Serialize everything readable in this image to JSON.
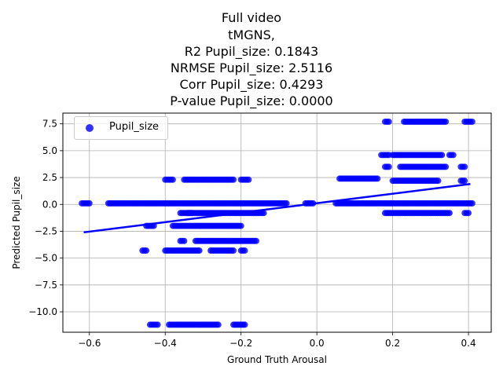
{
  "chart_data": {
    "type": "scatter",
    "title_lines": [
      "Full video",
      "tMGNS,",
      "R2 Pupil_size: 0.1843",
      "NRMSE Pupil_size: 2.5116",
      "Corr Pupil_size: 0.4293",
      "P-value Pupil_size: 0.0000"
    ],
    "xlabel": "Ground Truth Arousal",
    "ylabel": "Predicted Pupil_size",
    "xlim": [
      -0.67,
      0.46
    ],
    "ylim": [
      -11.9,
      8.5
    ],
    "xticks": [
      -0.6,
      -0.4,
      -0.2,
      0.0,
      0.2,
      0.4
    ],
    "xtick_labels": [
      "−0.6",
      "−0.4",
      "−0.2",
      "0.0",
      "0.2",
      "0.4"
    ],
    "yticks": [
      -10.0,
      -7.5,
      -5.0,
      -2.5,
      0.0,
      2.5,
      5.0,
      7.5
    ],
    "ytick_labels": [
      "−10.0",
      "−7.5",
      "−5.0",
      "−2.5",
      "0.0",
      "2.5",
      "5.0",
      "7.5"
    ],
    "grid": true,
    "legend": {
      "position": "top-left",
      "entries": [
        "Pupil_size"
      ]
    },
    "regression_line": {
      "x": [
        -0.615,
        0.405
      ],
      "y": [
        -2.6,
        1.9
      ]
    },
    "series": [
      {
        "name": "Pupil_size",
        "color": "#0000ff",
        "segments": [
          {
            "y": 0.1,
            "x_start": -0.62,
            "x_end": -0.6
          },
          {
            "y": 0.1,
            "x_start": -0.55,
            "x_end": -0.08
          },
          {
            "y": 0.1,
            "x_start": -0.03,
            "x_end": -0.01
          },
          {
            "y": 0.1,
            "x_start": 0.05,
            "x_end": 0.41
          },
          {
            "y": 2.3,
            "x_start": -0.4,
            "x_end": -0.38
          },
          {
            "y": 2.3,
            "x_start": -0.35,
            "x_end": -0.22
          },
          {
            "y": 2.3,
            "x_start": -0.2,
            "x_end": -0.18
          },
          {
            "y": 2.4,
            "x_start": 0.06,
            "x_end": 0.16
          },
          {
            "y": 2.2,
            "x_start": 0.2,
            "x_end": 0.32
          },
          {
            "y": 2.2,
            "x_start": 0.38,
            "x_end": 0.39
          },
          {
            "y": -0.8,
            "x_start": -0.34,
            "x_end": -0.33
          },
          {
            "y": -0.8,
            "x_start": -0.36,
            "x_end": -0.14
          },
          {
            "y": -0.8,
            "x_start": 0.18,
            "x_end": 0.35
          },
          {
            "y": -0.8,
            "x_start": 0.39,
            "x_end": 0.4
          },
          {
            "y": -2.0,
            "x_start": -0.45,
            "x_end": -0.43
          },
          {
            "y": -2.0,
            "x_start": -0.38,
            "x_end": -0.2
          },
          {
            "y": -3.4,
            "x_start": -0.36,
            "x_end": -0.35
          },
          {
            "y": -3.4,
            "x_start": -0.32,
            "x_end": -0.16
          },
          {
            "y": -4.3,
            "x_start": -0.46,
            "x_end": -0.45
          },
          {
            "y": -4.3,
            "x_start": -0.4,
            "x_end": -0.31
          },
          {
            "y": -4.3,
            "x_start": -0.28,
            "x_end": -0.22
          },
          {
            "y": -4.3,
            "x_start": -0.2,
            "x_end": -0.19
          },
          {
            "y": -11.2,
            "x_start": -0.44,
            "x_end": -0.42
          },
          {
            "y": -11.2,
            "x_start": -0.39,
            "x_end": -0.26
          },
          {
            "y": -11.2,
            "x_start": -0.22,
            "x_end": -0.19
          },
          {
            "y": 7.7,
            "x_start": 0.18,
            "x_end": 0.19
          },
          {
            "y": 7.7,
            "x_start": 0.23,
            "x_end": 0.34
          },
          {
            "y": 7.7,
            "x_start": 0.39,
            "x_end": 0.41
          },
          {
            "y": 4.6,
            "x_start": 0.17,
            "x_end": 0.19
          },
          {
            "y": 4.6,
            "x_start": 0.2,
            "x_end": 0.33
          },
          {
            "y": 4.6,
            "x_start": 0.35,
            "x_end": 0.36
          },
          {
            "y": 3.5,
            "x_start": 0.18,
            "x_end": 0.19
          },
          {
            "y": 3.5,
            "x_start": 0.22,
            "x_end": 0.34
          },
          {
            "y": 3.5,
            "x_start": 0.38,
            "x_end": 0.39
          }
        ]
      }
    ]
  }
}
